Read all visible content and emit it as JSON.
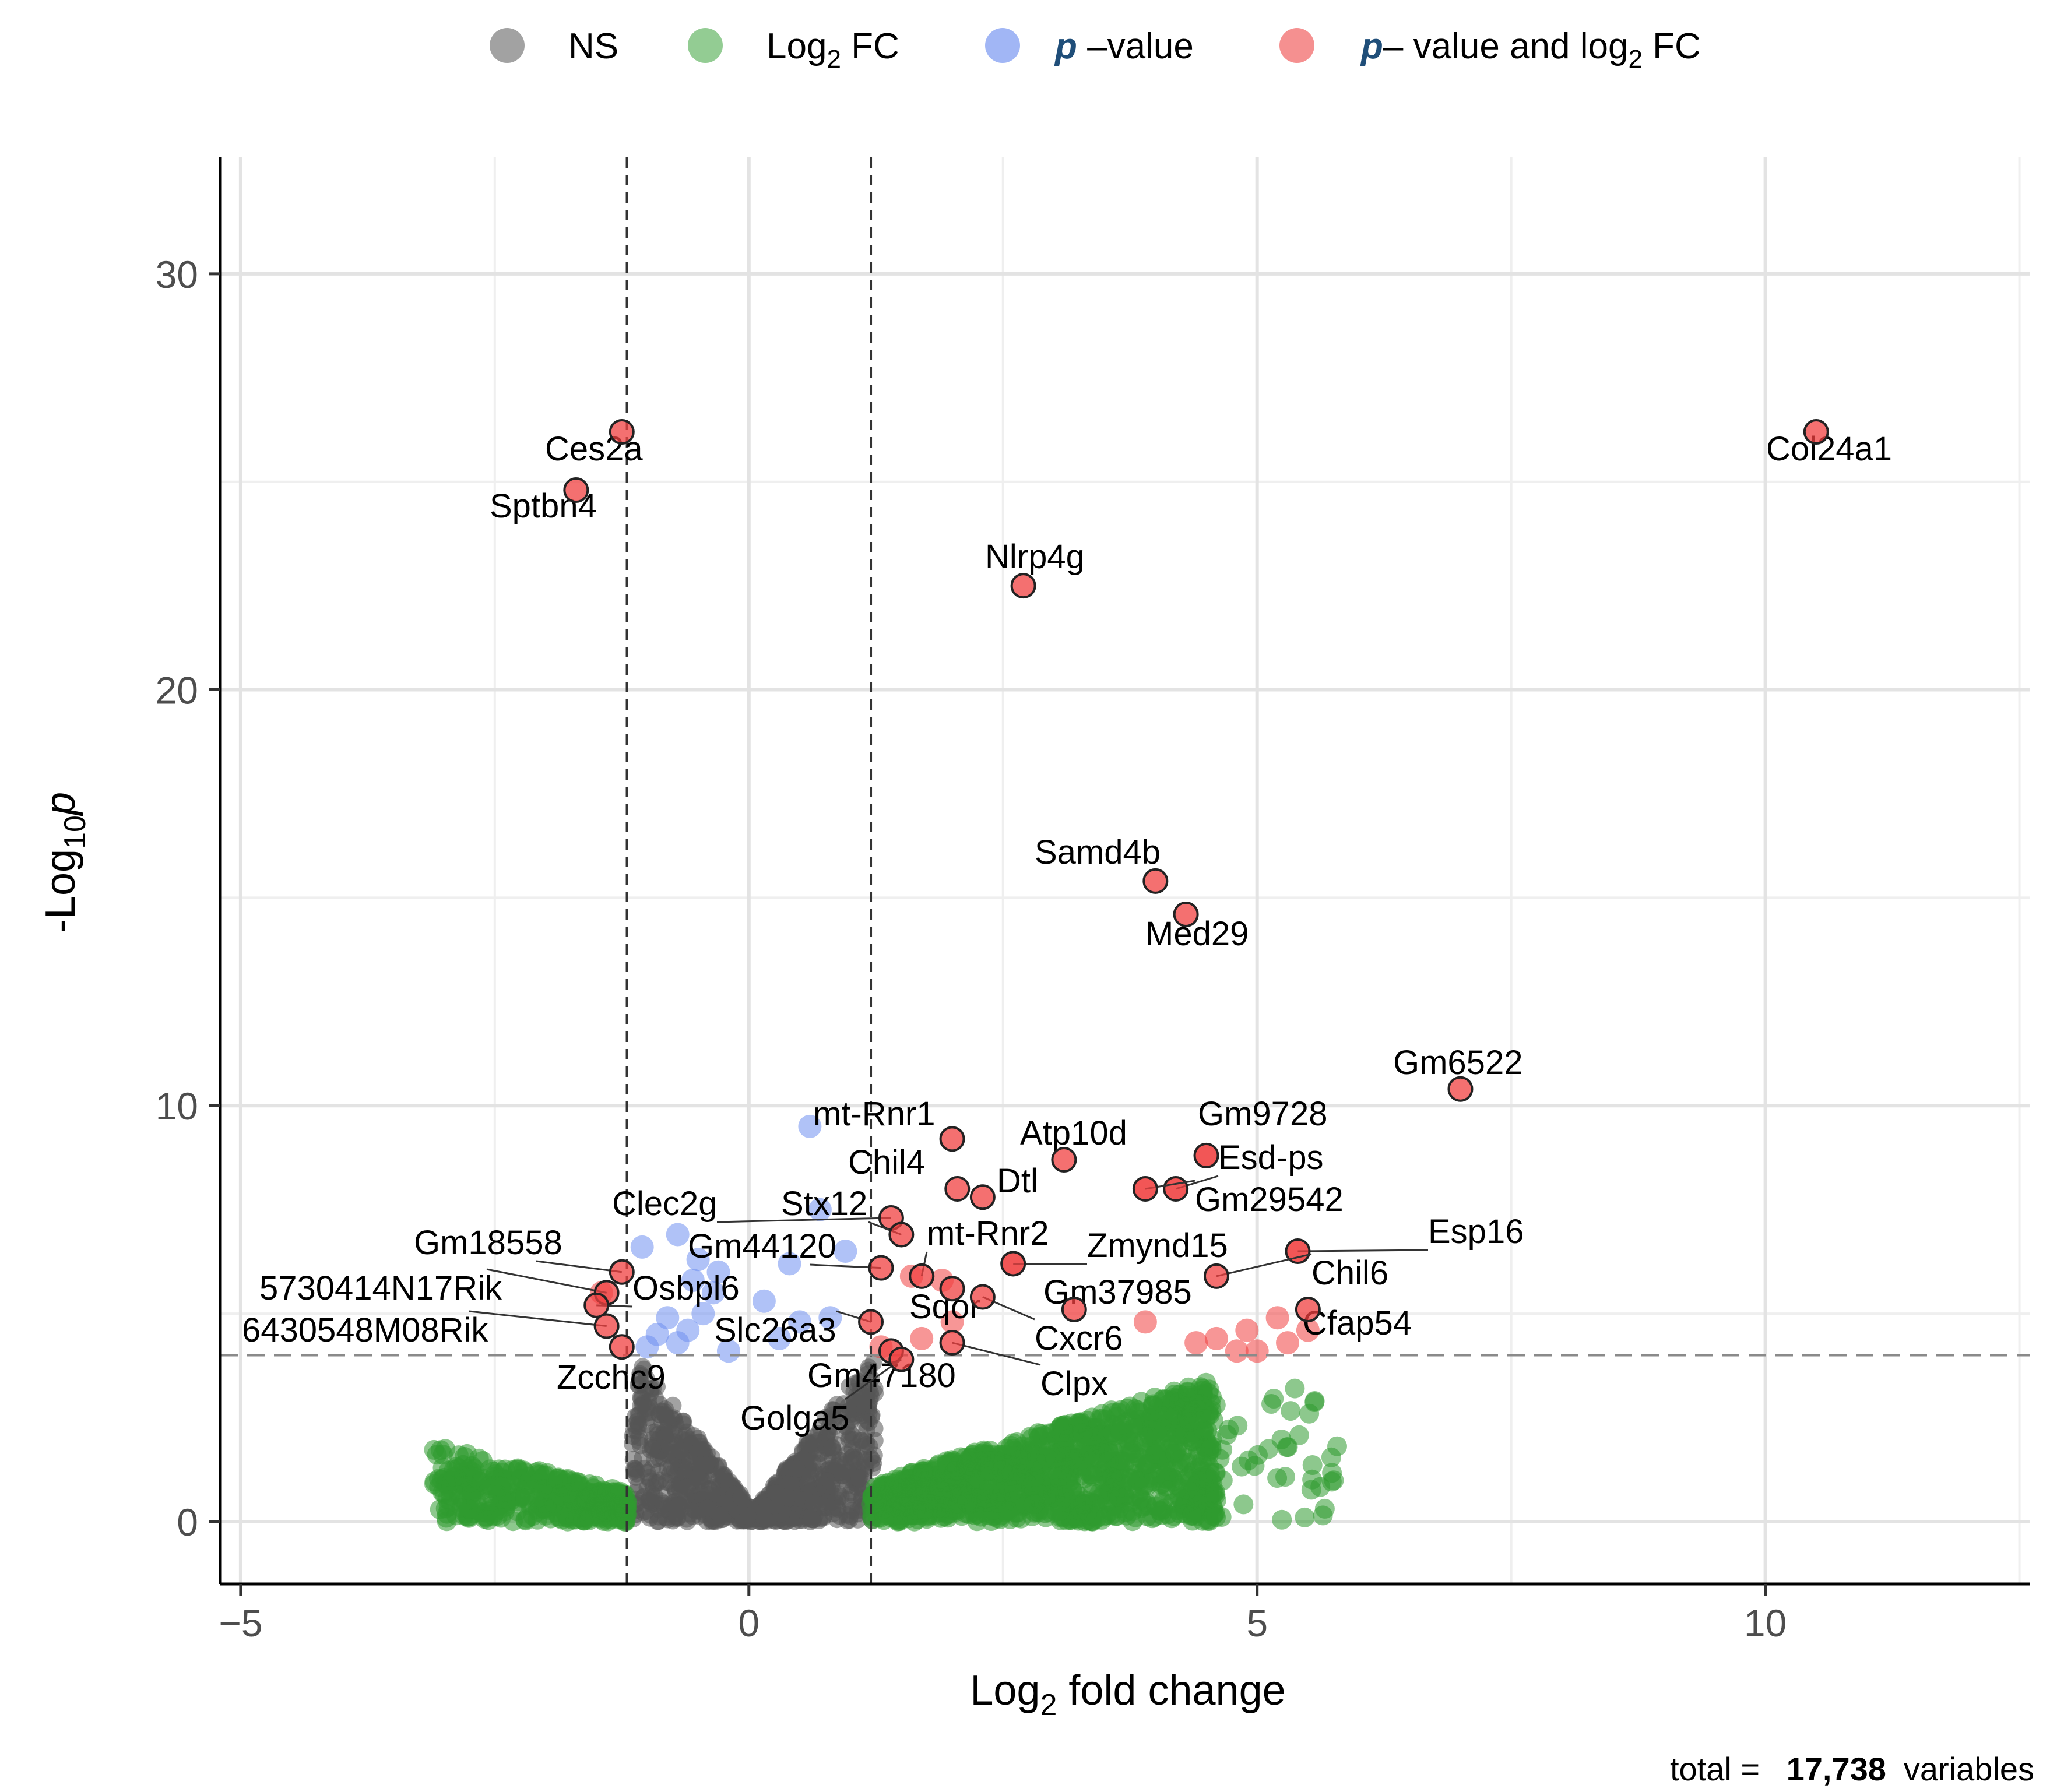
{
  "chart_data": {
    "type": "scatter",
    "title": "",
    "xlabel": "Log2 fold change",
    "ylabel": "-Log10p",
    "xlim": [
      -5.2,
      12.6
    ],
    "ylim": [
      -1.5,
      32.8
    ],
    "x_ticks": [
      {
        "value": -5,
        "label": "−5"
      },
      {
        "value": 0,
        "label": "0"
      },
      {
        "value": 5,
        "label": "5"
      },
      {
        "value": 10,
        "label": "10"
      }
    ],
    "y_ticks": [
      {
        "value": 0,
        "label": "0"
      },
      {
        "value": 10,
        "label": "10"
      },
      {
        "value": 20,
        "label": "20"
      },
      {
        "value": 30,
        "label": "30"
      }
    ],
    "thresholds": {
      "fc_low": -1.2,
      "fc_high": 1.2,
      "p": 4.0
    },
    "legend": [
      {
        "key": "NS",
        "label": "NS",
        "color": "#555555"
      },
      {
        "key": "FC",
        "label": "Log2 FC",
        "color": "#3aa33a"
      },
      {
        "key": "P",
        "label": "p –value",
        "color": "#6f8ff0"
      },
      {
        "key": "PFC",
        "label": "p– value and log2 FC",
        "color": "#f05555"
      }
    ],
    "series_colors": {
      "NS": "#555555",
      "FC": "#2f9a2f",
      "P": "#6f8ff0",
      "PFC": "#f04040"
    },
    "total_caption": {
      "prefix": "total = ",
      "count": "17,738",
      "suffix": "variables"
    },
    "labeled_genes": [
      {
        "gene": "Col24a1",
        "x": 10.5,
        "y": 26.2
      },
      {
        "gene": "Ces2a",
        "x": -1.25,
        "y": 26.2
      },
      {
        "gene": "Sptbn4",
        "x": -1.7,
        "y": 24.8
      },
      {
        "gene": "Nlrp4g",
        "x": 2.7,
        "y": 22.5
      },
      {
        "gene": "Samd4b",
        "x": 4.0,
        "y": 15.4
      },
      {
        "gene": "Med29",
        "x": 4.3,
        "y": 14.6
      },
      {
        "gene": "Gm6522",
        "x": 7.0,
        "y": 10.4
      },
      {
        "gene": "mt-Rnr1",
        "x": 2.0,
        "y": 9.2
      },
      {
        "gene": "Atp10d",
        "x": 3.1,
        "y": 8.7
      },
      {
        "gene": "Gm9728",
        "x": 4.5,
        "y": 8.8
      },
      {
        "gene": "Chil4",
        "x": 2.05,
        "y": 8.0
      },
      {
        "gene": "Dtl",
        "x": 2.3,
        "y": 7.8
      },
      {
        "gene": "Esd-ps",
        "x": 4.2,
        "y": 8.0
      },
      {
        "gene": "Gm29542",
        "x": 3.9,
        "y": 8.0
      },
      {
        "gene": "Clec2g",
        "x": 1.4,
        "y": 7.3
      },
      {
        "gene": "Stx12",
        "x": 1.5,
        "y": 6.9
      },
      {
        "gene": "mt-Rnr2",
        "x": 1.7,
        "y": 5.9
      },
      {
        "gene": "Zmynd15",
        "x": 2.6,
        "y": 6.2
      },
      {
        "gene": "Esp16",
        "x": 5.4,
        "y": 6.5
      },
      {
        "gene": "Gm18558",
        "x": -1.25,
        "y": 6.0
      },
      {
        "gene": "Gm44120",
        "x": 1.3,
        "y": 6.1
      },
      {
        "gene": "Chil6",
        "x": 4.6,
        "y": 5.9
      },
      {
        "gene": "Gm37985",
        "x": 3.2,
        "y": 5.1
      },
      {
        "gene": "5730414N17Rik",
        "x": -1.4,
        "y": 5.5
      },
      {
        "gene": "Osbpl6",
        "x": -1.5,
        "y": 5.2
      },
      {
        "gene": "Sqor",
        "x": 2.0,
        "y": 5.6
      },
      {
        "gene": "Cfap54",
        "x": 5.5,
        "y": 5.1
      },
      {
        "gene": "6430548M08Rik",
        "x": -1.4,
        "y": 4.7
      },
      {
        "gene": "Slc26a3",
        "x": 1.2,
        "y": 4.8
      },
      {
        "gene": "Cxcr6",
        "x": 2.3,
        "y": 5.4
      },
      {
        "gene": "Zcchc9",
        "x": -1.25,
        "y": 4.2
      },
      {
        "gene": "Gm47180",
        "x": 1.4,
        "y": 4.1
      },
      {
        "gene": "Clpx",
        "x": 2.0,
        "y": 4.3
      },
      {
        "gene": "Golga5",
        "x": 1.5,
        "y": 3.9
      }
    ]
  }
}
